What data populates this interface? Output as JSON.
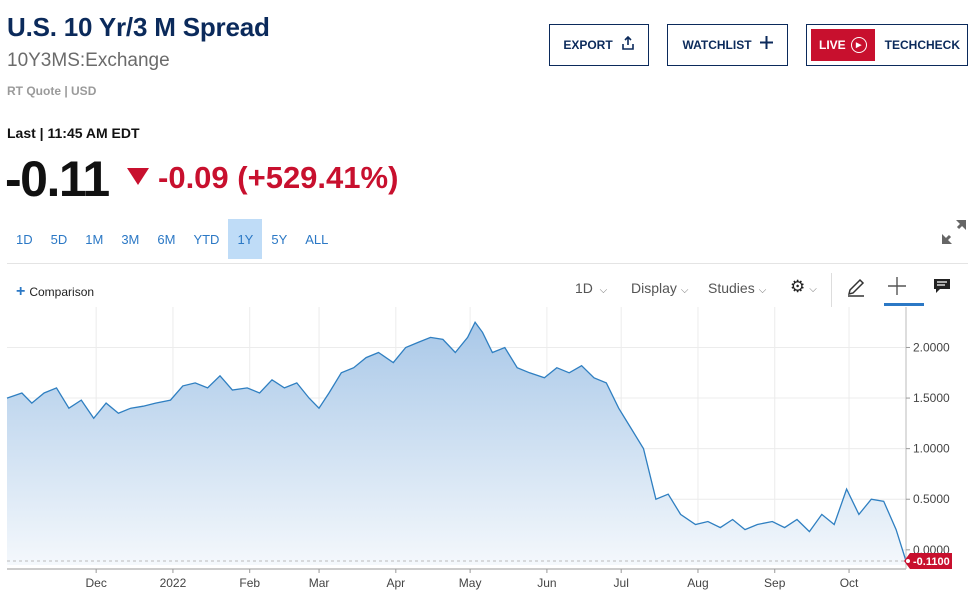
{
  "header": {
    "title": "U.S. 10 Yr/3 M Spread",
    "symbol": "10Y3MS:Exchange",
    "quote_meta": "RT Quote | USD"
  },
  "buttons": {
    "export": "EXPORT",
    "watchlist": "WATCHLIST",
    "live": "LIVE",
    "techcheck": "TECHCHECK"
  },
  "quote": {
    "last_label": "Last | 11:45 AM EDT",
    "price": "-0.11",
    "change": "-0.09 (+529.41%)",
    "direction": "down"
  },
  "ranges": [
    "1D",
    "5D",
    "1M",
    "3M",
    "6M",
    "YTD",
    "1Y",
    "5Y",
    "ALL"
  ],
  "active_range": "1Y",
  "toolbar": {
    "comparison": "Comparison",
    "interval": "1D",
    "display": "Display",
    "studies": "Studies"
  },
  "colors": {
    "line": "#2f7fc1",
    "fill_top": "#a9c8e8",
    "fill_bottom": "#f4f8fc",
    "negative": "#c8102e",
    "title": "#0b2a5b"
  },
  "chart_data": {
    "type": "area",
    "x_start": "2021-10-26",
    "x_end": "2022-10-24",
    "xticks": [
      {
        "label": "Dec",
        "date": "2021-12-01"
      },
      {
        "label": "2022",
        "date": "2022-01-01"
      },
      {
        "label": "Feb",
        "date": "2022-02-01"
      },
      {
        "label": "Mar",
        "date": "2022-03-01"
      },
      {
        "label": "Apr",
        "date": "2022-04-01"
      },
      {
        "label": "May",
        "date": "2022-05-01"
      },
      {
        "label": "Jun",
        "date": "2022-06-01"
      },
      {
        "label": "Jul",
        "date": "2022-07-01"
      },
      {
        "label": "Aug",
        "date": "2022-08-01"
      },
      {
        "label": "Sep",
        "date": "2022-09-01"
      },
      {
        "label": "Oct",
        "date": "2022-10-01"
      }
    ],
    "yticks": [
      "2.0000",
      "1.5000",
      "1.0000",
      "0.5000",
      "0.0000"
    ],
    "ylim": [
      -0.15,
      2.4
    ],
    "last_value_label": "-0.1100",
    "series": [
      {
        "x": [
          "2021-10-26",
          "2021-11-01",
          "2021-11-05",
          "2021-11-10",
          "2021-11-15",
          "2021-11-20",
          "2021-11-25",
          "2021-11-30",
          "2021-12-05",
          "2021-12-10",
          "2021-12-15",
          "2021-12-20",
          "2021-12-25",
          "2021-12-31",
          "2022-01-05",
          "2022-01-10",
          "2022-01-15",
          "2022-01-20",
          "2022-01-25",
          "2022-01-31",
          "2022-02-05",
          "2022-02-10",
          "2022-02-15",
          "2022-02-20",
          "2022-02-25",
          "2022-03-01",
          "2022-03-05",
          "2022-03-10",
          "2022-03-15",
          "2022-03-20",
          "2022-03-25",
          "2022-03-31",
          "2022-04-05",
          "2022-04-10",
          "2022-04-15",
          "2022-04-20",
          "2022-04-25",
          "2022-04-30",
          "2022-05-03",
          "2022-05-06",
          "2022-05-10",
          "2022-05-15",
          "2022-05-20",
          "2022-05-25",
          "2022-05-31",
          "2022-06-05",
          "2022-06-10",
          "2022-06-15",
          "2022-06-20",
          "2022-06-25",
          "2022-06-30",
          "2022-07-05",
          "2022-07-10",
          "2022-07-15",
          "2022-07-20",
          "2022-07-25",
          "2022-07-31",
          "2022-08-05",
          "2022-08-10",
          "2022-08-15",
          "2022-08-20",
          "2022-08-25",
          "2022-08-31",
          "2022-09-05",
          "2022-09-10",
          "2022-09-15",
          "2022-09-20",
          "2022-09-25",
          "2022-09-30",
          "2022-10-05",
          "2022-10-10",
          "2022-10-15",
          "2022-10-20",
          "2022-10-24"
        ],
        "y": [
          1.5,
          1.55,
          1.45,
          1.55,
          1.6,
          1.4,
          1.48,
          1.3,
          1.45,
          1.35,
          1.4,
          1.42,
          1.45,
          1.48,
          1.62,
          1.65,
          1.6,
          1.72,
          1.58,
          1.6,
          1.55,
          1.68,
          1.6,
          1.65,
          1.5,
          1.4,
          1.55,
          1.75,
          1.8,
          1.9,
          1.95,
          1.85,
          2.0,
          2.05,
          2.1,
          2.08,
          1.95,
          2.1,
          2.25,
          2.15,
          1.95,
          2.0,
          1.8,
          1.75,
          1.7,
          1.8,
          1.75,
          1.82,
          1.7,
          1.65,
          1.4,
          1.2,
          1.0,
          0.5,
          0.55,
          0.35,
          0.25,
          0.28,
          0.22,
          0.3,
          0.2,
          0.25,
          0.28,
          0.22,
          0.3,
          0.18,
          0.35,
          0.25,
          0.6,
          0.35,
          0.5,
          0.48,
          0.2,
          -0.11
        ]
      }
    ]
  }
}
